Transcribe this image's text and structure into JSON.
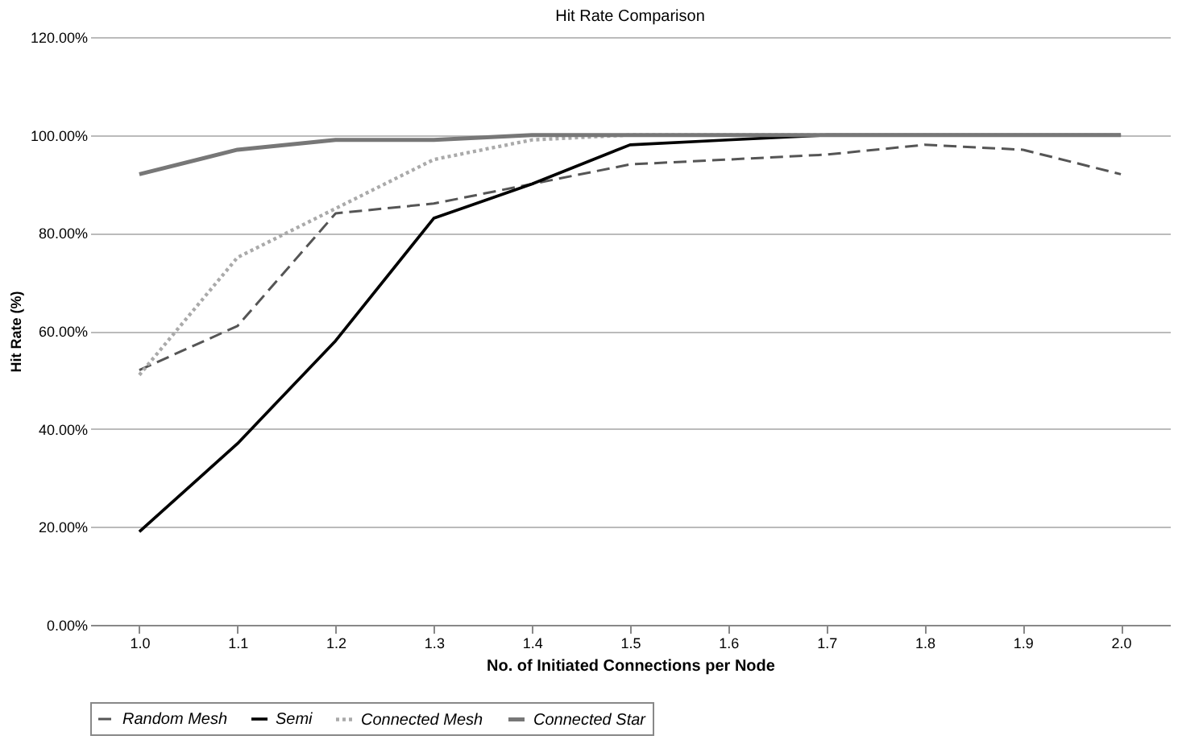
{
  "chart_data": {
    "type": "line",
    "title": "Hit Rate Comparison",
    "xlabel": "No. of Initiated Connections per Node",
    "ylabel": "Hit Rate (%)",
    "categories": [
      "1.0",
      "1.1",
      "1.2",
      "1.3",
      "1.4",
      "1.5",
      "1.6",
      "1.7",
      "1.8",
      "1.9",
      "2.0"
    ],
    "series": [
      {
        "name": "Random Mesh",
        "color": "#555555",
        "line_style": "dashed",
        "values": [
          52,
          61,
          84,
          86,
          90,
          94,
          95,
          96,
          98,
          97,
          92
        ]
      },
      {
        "name": "Semi",
        "color": "#000000",
        "line_style": "solid",
        "values": [
          19,
          37,
          58,
          83,
          90,
          98,
          99,
          100,
          100,
          100,
          100
        ]
      },
      {
        "name": "Connected Mesh",
        "color": "#aaaaaa",
        "line_style": "dotted",
        "values": [
          51,
          75,
          85,
          95,
          99,
          100,
          100,
          100,
          100,
          100,
          100
        ]
      },
      {
        "name": "Connected Star",
        "color": "#777777",
        "line_style": "solid",
        "values": [
          92,
          97,
          99,
          99,
          100,
          100,
          100,
          100,
          100,
          100,
          100
        ]
      }
    ],
    "ylim": [
      0,
      120
    ],
    "yticks": [
      {
        "value": 0,
        "label": "0.00%"
      },
      {
        "value": 20,
        "label": "20.00%"
      },
      {
        "value": 40,
        "label": "40.00%"
      },
      {
        "value": 60,
        "label": "60.00%"
      },
      {
        "value": 80,
        "label": "80.00%"
      },
      {
        "value": 100,
        "label": "100.00%"
      },
      {
        "value": 120,
        "label": "120.00%"
      }
    ],
    "grid": "y",
    "legend": "bottom",
    "marker": "none"
  }
}
